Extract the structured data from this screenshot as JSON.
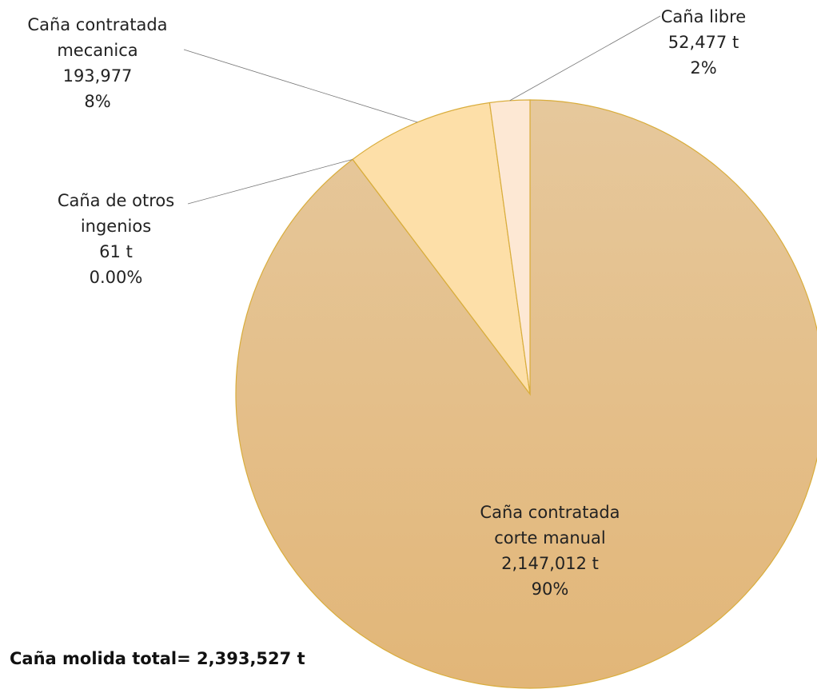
{
  "chart_data": {
    "type": "pie",
    "categories": [
      "Caña contratada corte manual",
      "Caña de otros ingenios",
      "Caña contratada mecanica",
      "Caña libre"
    ],
    "values": [
      2147012,
      61,
      193977,
      52477
    ],
    "value_labels": [
      "2,147,012 t",
      "61 t",
      "193,977",
      "52,477 t"
    ],
    "percent_labels": [
      "90%",
      "0.00%",
      "8%",
      "2%"
    ],
    "colors": [
      "#e3bf8a",
      "#fde3b6",
      "#fddfa8",
      "#fde8d4"
    ],
    "annotation": "Caña molida total=  2,393,527 t"
  }
}
